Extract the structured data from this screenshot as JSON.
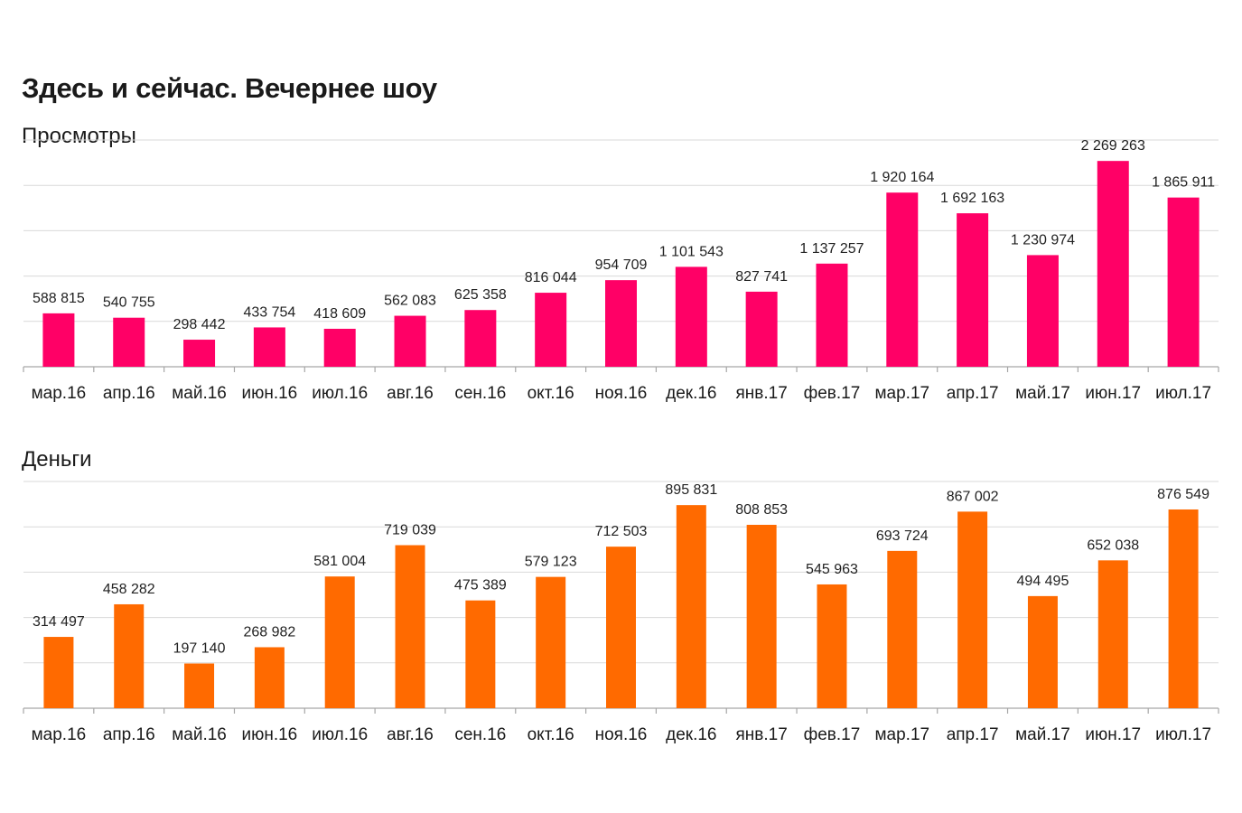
{
  "page": {
    "title": "Здесь и сейчас. Вечернее шоу"
  },
  "chart_data": [
    {
      "type": "bar",
      "title": "Просмотры",
      "color": "#ff0066",
      "categories": [
        "мар.16",
        "апр.16",
        "май.16",
        "июн.16",
        "июл.16",
        "авг.16",
        "сен.16",
        "окт.16",
        "ноя.16",
        "дек.16",
        "янв.17",
        "фев.17",
        "мар.17",
        "апр.17",
        "май.17",
        "июн.17",
        "июл.17"
      ],
      "values": [
        588815,
        540755,
        298442,
        433754,
        418609,
        562083,
        625358,
        816044,
        954709,
        1101543,
        827741,
        1137257,
        1920164,
        1692163,
        1230974,
        2269263,
        1865911
      ],
      "value_labels": [
        "588 815",
        "540 755",
        "298 442",
        "433 754",
        "418 609",
        "562 083",
        "625 358",
        "816 044",
        "954 709",
        "1 101 543",
        "827 741",
        "1 137 257",
        "1 920 164",
        "1 692 163",
        "1 230 974",
        "2 269 263",
        "1 865 911"
      ],
      "ylim": [
        0,
        2500000
      ],
      "grid": true,
      "legend": "none"
    },
    {
      "type": "bar",
      "title": "Деньги",
      "color": "#ff6a00",
      "categories": [
        "мар.16",
        "апр.16",
        "май.16",
        "июн.16",
        "июл.16",
        "авг.16",
        "сен.16",
        "окт.16",
        "ноя.16",
        "дек.16",
        "янв.17",
        "фев.17",
        "мар.17",
        "апр.17",
        "май.17",
        "июн.17",
        "июл.17"
      ],
      "values": [
        314497,
        458282,
        197140,
        268982,
        581004,
        719039,
        475389,
        579123,
        712503,
        895831,
        808853,
        545963,
        693724,
        867002,
        494495,
        652038,
        876549
      ],
      "value_labels": [
        "314 497",
        "458 282",
        "197 140",
        "268 982",
        "581 004",
        "719 039",
        "475 389",
        "579 123",
        "712 503",
        "895 831",
        "808 853",
        "545 963",
        "693 724",
        "867 002",
        "494 495",
        "652 038",
        "876 549"
      ],
      "ylim": [
        0,
        1000000
      ],
      "grid": true,
      "legend": "none"
    }
  ]
}
